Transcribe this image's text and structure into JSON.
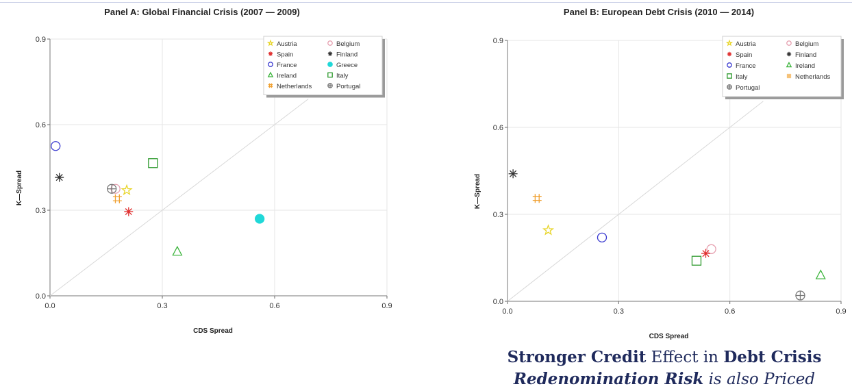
{
  "chart_data": [
    {
      "type": "scatter",
      "title": "Panel A:  Global Financial Crisis (2007 — 2009)",
      "xlabel": "CDS Spread",
      "ylabel": "K—Spread",
      "xlim": [
        0,
        0.9
      ],
      "ylim": [
        0,
        0.9
      ],
      "xticks": [
        "0.0",
        "0.3",
        "0.6",
        "0.9"
      ],
      "yticks": [
        "0.0",
        "0.3",
        "0.6",
        "0.9"
      ],
      "grid": true,
      "diagonal_reference_line": true,
      "legend_position": "top-right",
      "legend": [
        {
          "name": "Austria",
          "symbol": "star",
          "color": "#e8d52a"
        },
        {
          "name": "Belgium",
          "symbol": "circle",
          "color": "#e6a0b0"
        },
        {
          "name": "Spain",
          "symbol": "asterisk",
          "color": "#e03030"
        },
        {
          "name": "Finland",
          "symbol": "asterisk",
          "color": "#333333"
        },
        {
          "name": "France",
          "symbol": "circle",
          "color": "#3a3ad0"
        },
        {
          "name": "Greece",
          "symbol": "filled-circle",
          "color": "#20d8d8"
        },
        {
          "name": "Ireland",
          "symbol": "triangle",
          "color": "#3cb43c"
        },
        {
          "name": "Italy",
          "symbol": "square",
          "color": "#2e9a2e"
        },
        {
          "name": "Netherlands",
          "symbol": "hash",
          "color": "#f0a030"
        },
        {
          "name": "Portugal",
          "symbol": "circle-plus",
          "color": "#777777"
        }
      ],
      "series": [
        {
          "name": "Austria",
          "x": 0.205,
          "y": 0.37
        },
        {
          "name": "Belgium",
          "x": 0.175,
          "y": 0.375
        },
        {
          "name": "Spain",
          "x": 0.21,
          "y": 0.295
        },
        {
          "name": "Finland",
          "x": 0.025,
          "y": 0.415
        },
        {
          "name": "France",
          "x": 0.015,
          "y": 0.525
        },
        {
          "name": "Greece",
          "x": 0.56,
          "y": 0.27
        },
        {
          "name": "Ireland",
          "x": 0.34,
          "y": 0.155
        },
        {
          "name": "Italy",
          "x": 0.275,
          "y": 0.465
        },
        {
          "name": "Netherlands",
          "x": 0.18,
          "y": 0.34
        },
        {
          "name": "Portugal",
          "x": 0.165,
          "y": 0.375
        }
      ]
    },
    {
      "type": "scatter",
      "title": "Panel B:  European Debt Crisis (2010 — 2014)",
      "xlabel": "CDS Spread",
      "ylabel": "K—Spread",
      "xlim": [
        0,
        0.9
      ],
      "ylim": [
        0,
        0.9
      ],
      "xticks": [
        "0.0",
        "0.3",
        "0.6",
        "0.9"
      ],
      "yticks": [
        "0.0",
        "0.3",
        "0.6",
        "0.9"
      ],
      "grid": true,
      "diagonal_reference_line": true,
      "legend_position": "top-right",
      "legend": [
        {
          "name": "Austria",
          "symbol": "star",
          "color": "#e8d52a"
        },
        {
          "name": "Belgium",
          "symbol": "circle",
          "color": "#e6a0b0"
        },
        {
          "name": "Spain",
          "symbol": "asterisk",
          "color": "#e03030"
        },
        {
          "name": "Finland",
          "symbol": "asterisk",
          "color": "#333333"
        },
        {
          "name": "France",
          "symbol": "circle",
          "color": "#3a3ad0"
        },
        {
          "name": "Ireland",
          "symbol": "triangle",
          "color": "#3cb43c"
        },
        {
          "name": "Italy",
          "symbol": "square",
          "color": "#2e9a2e"
        },
        {
          "name": "Netherlands",
          "symbol": "hash",
          "color": "#f0a030"
        },
        {
          "name": "Portugal",
          "symbol": "circle-plus",
          "color": "#777777"
        }
      ],
      "series": [
        {
          "name": "Austria",
          "x": 0.11,
          "y": 0.245
        },
        {
          "name": "Belgium",
          "x": 0.55,
          "y": 0.18
        },
        {
          "name": "Spain",
          "x": 0.535,
          "y": 0.165
        },
        {
          "name": "Finland",
          "x": 0.015,
          "y": 0.44
        },
        {
          "name": "France",
          "x": 0.255,
          "y": 0.22
        },
        {
          "name": "Ireland",
          "x": 0.845,
          "y": 0.09
        },
        {
          "name": "Italy",
          "x": 0.51,
          "y": 0.14
        },
        {
          "name": "Netherlands",
          "x": 0.08,
          "y": 0.355
        },
        {
          "name": "Portugal",
          "x": 0.79,
          "y": 0.02
        }
      ]
    }
  ],
  "caption": {
    "line1_a": "Stronger Credit",
    "line1_b": " Effect in ",
    "line1_c": "Debt Crisis",
    "line2_a": "Redenomination Risk",
    "line2_b": " is also Priced"
  }
}
